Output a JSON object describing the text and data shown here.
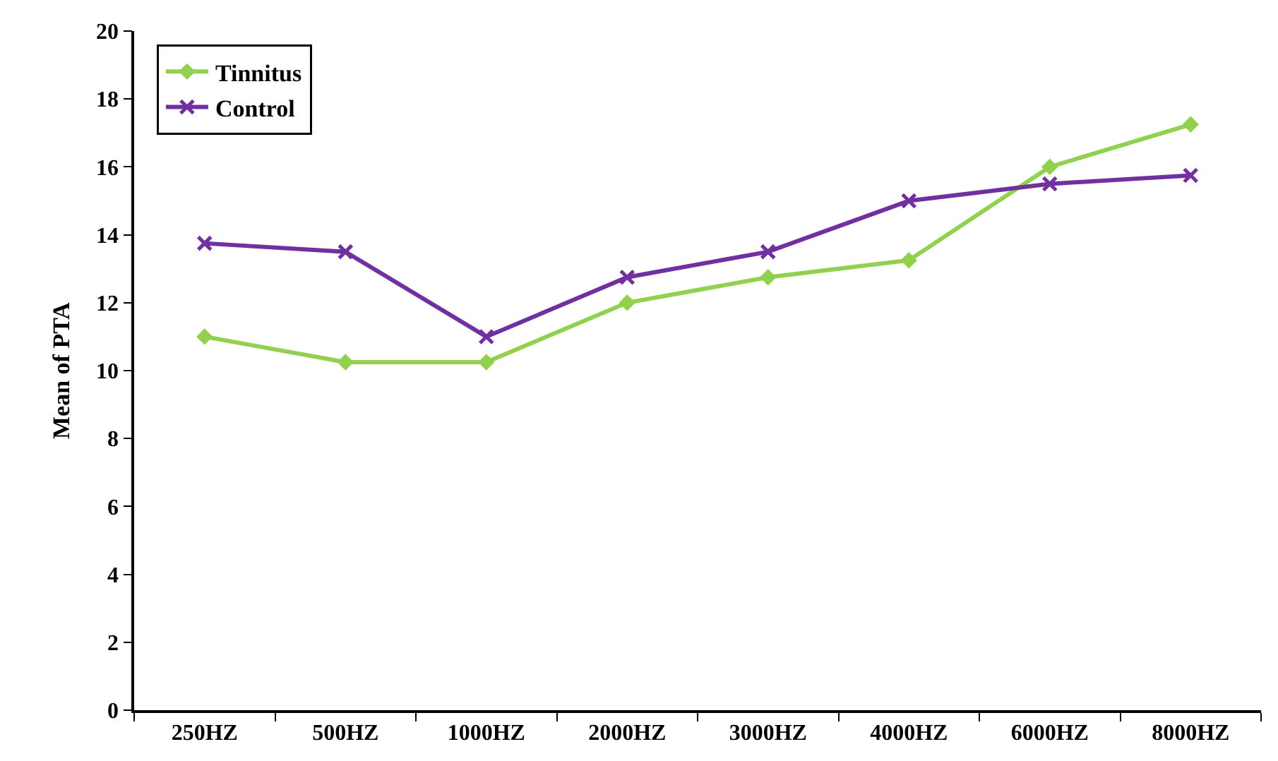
{
  "chart_data": {
    "type": "line",
    "ylabel": "Mean of PTA",
    "categories": [
      "250HZ",
      "500HZ",
      "1000HZ",
      "2000HZ",
      "3000HZ",
      "4000HZ",
      "6000HZ",
      "8000HZ"
    ],
    "series": [
      {
        "name": "Tinnitus",
        "color": "#92d050",
        "marker": "diamond",
        "values": [
          11,
          10.25,
          10.25,
          12,
          12.75,
          13.25,
          16,
          17.25
        ]
      },
      {
        "name": "Control",
        "color": "#7030a0",
        "marker": "cross",
        "values": [
          13.75,
          13.5,
          11,
          12.75,
          13.5,
          15,
          15.5,
          15.75
        ]
      }
    ],
    "ylim": [
      0,
      20
    ],
    "yticks": [
      0,
      2,
      4,
      6,
      8,
      10,
      12,
      14,
      16,
      18,
      20
    ],
    "grid": false,
    "legend": "top left",
    "line_style": "solid"
  }
}
